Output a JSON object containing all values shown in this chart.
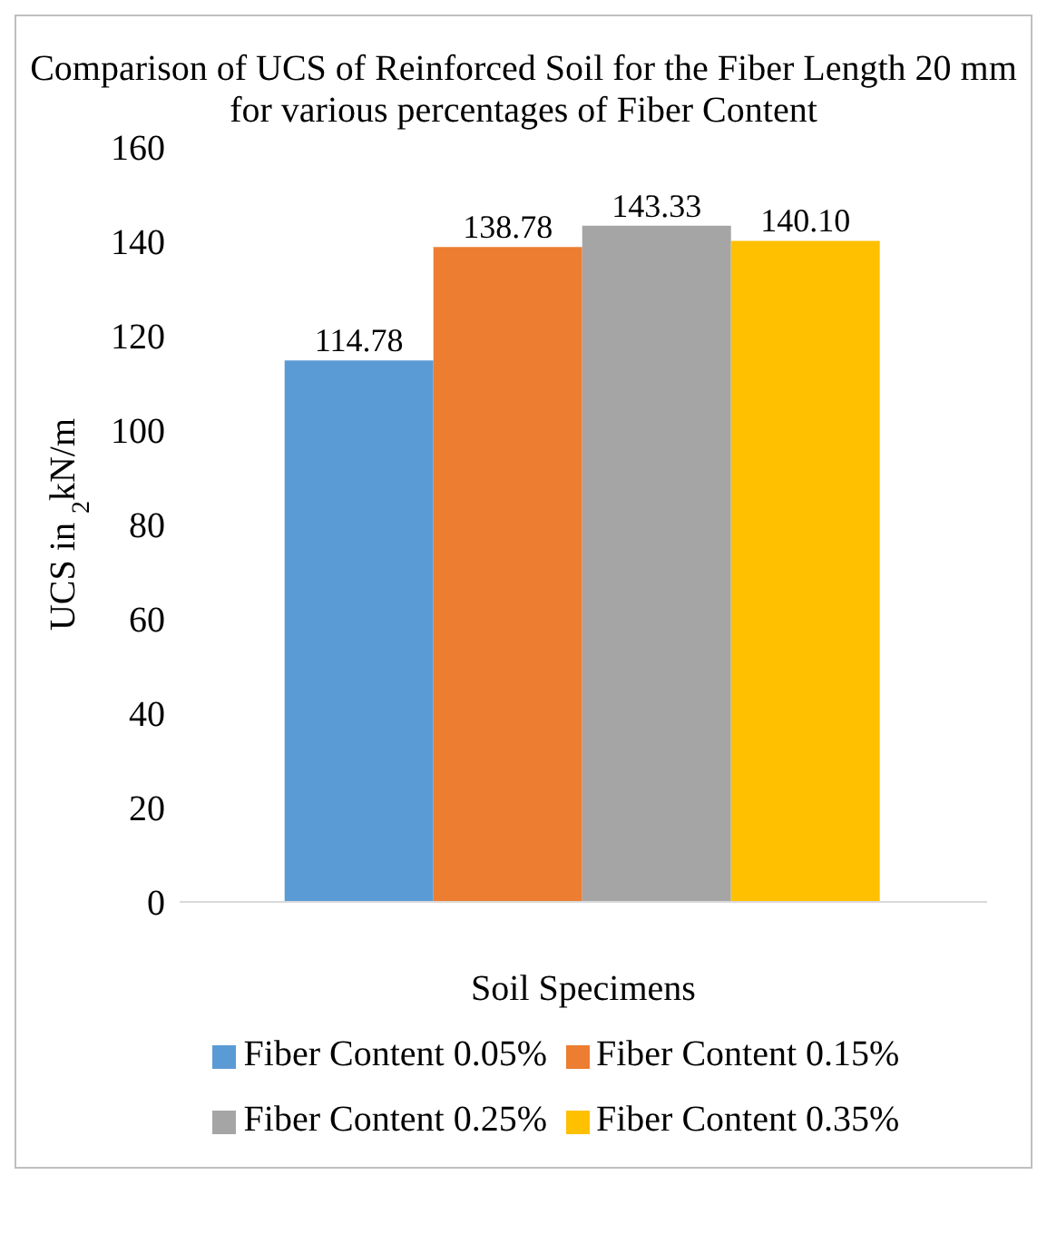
{
  "chart_data": {
    "type": "bar",
    "title": "Comparison of UCS of Reinforced Soil for the Fiber Length 20 mm for various percentages of Fiber Content",
    "xlabel": "Soil Specimens",
    "ylabel": "UCS in $_{2}$kN/m",
    "categories": [
      null
    ],
    "series": [
      {
        "name": "Fiber Content 0.05%",
        "color": "#5b9bd5",
        "values": [
          114.78
        ],
        "value_labels": [
          "114.78"
        ]
      },
      {
        "name": "Fiber Content 0.15%",
        "color": "#ed7d31",
        "values": [
          138.78
        ],
        "value_labels": [
          "138.78"
        ]
      },
      {
        "name": "Fiber Content 0.25%",
        "color": "#a5a5a5",
        "values": [
          143.33
        ],
        "value_labels": [
          "143.33"
        ]
      },
      {
        "name": "Fiber Content 0.35%",
        "color": "#ffc000",
        "values": [
          140.1
        ],
        "value_labels": [
          "140.10"
        ]
      }
    ],
    "ylim": [
      0,
      160
    ],
    "yticks": [
      0,
      20,
      40,
      60,
      80,
      100,
      120,
      140,
      160
    ],
    "grid": false,
    "legend": "bottom"
  }
}
